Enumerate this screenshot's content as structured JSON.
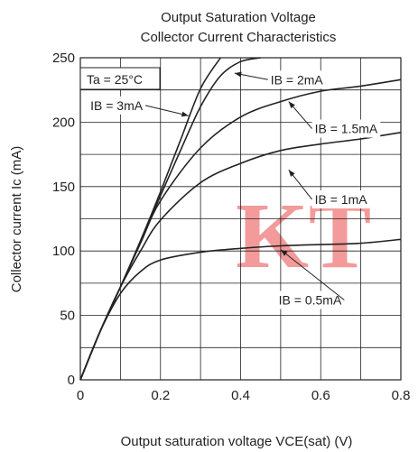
{
  "chart_data": {
    "type": "line",
    "title": [
      "Output Saturation Voltage",
      "Collector Current Characteristics"
    ],
    "xlabel": "Output saturation voltage  VCE(sat) (V)",
    "ylabel": "Collector current  Ic (mA)",
    "xlim": [
      0,
      0.8
    ],
    "ylim": [
      0,
      250
    ],
    "xticks": [
      0,
      0.2,
      0.4,
      0.6,
      0.8
    ],
    "xtick_labels": [
      "0",
      "0.2",
      "0.4",
      "0.6",
      "0.8"
    ],
    "yticks": [
      0,
      50,
      100,
      150,
      200,
      250
    ],
    "ytick_labels": [
      "0",
      "50",
      "100",
      "150",
      "200",
      "250"
    ],
    "grid": true,
    "condition": "Ta = 25°C",
    "series": [
      {
        "name": "IB = 0.5mA",
        "x": [
          0,
          0.05,
          0.1,
          0.15,
          0.2,
          0.3,
          0.4,
          0.5,
          0.6,
          0.7,
          0.8
        ],
        "y": [
          0,
          38,
          67,
          84,
          93,
          99,
          102,
          104,
          105,
          106,
          109
        ]
      },
      {
        "name": "IB = 1mA",
        "x": [
          0,
          0.05,
          0.1,
          0.15,
          0.2,
          0.3,
          0.4,
          0.5,
          0.6,
          0.7,
          0.8
        ],
        "y": [
          0,
          38,
          72,
          100,
          124,
          153,
          168,
          178,
          183,
          187,
          192
        ]
      },
      {
        "name": "IB = 1.5mA",
        "x": [
          0,
          0.05,
          0.1,
          0.15,
          0.2,
          0.3,
          0.4,
          0.5,
          0.6,
          0.7,
          0.8
        ],
        "y": [
          0,
          38,
          72,
          106,
          139,
          180,
          204,
          216,
          224,
          228,
          233
        ]
      },
      {
        "name": "IB = 2mA",
        "x": [
          0,
          0.05,
          0.1,
          0.15,
          0.2,
          0.25,
          0.3,
          0.35,
          0.4,
          0.45
        ],
        "y": [
          0,
          38,
          72,
          107,
          143,
          178,
          212,
          236,
          247,
          250
        ]
      },
      {
        "name": "IB = 3mA",
        "x": [
          0,
          0.05,
          0.1,
          0.15,
          0.2,
          0.25,
          0.3,
          0.35
        ],
        "y": [
          0,
          38,
          72,
          108,
          146,
          186,
          226,
          250
        ]
      }
    ],
    "labels": [
      {
        "text": "IB = 2mA",
        "x": 0.475,
        "y": 233,
        "ax": 0.385,
        "ay": 238
      },
      {
        "text": "IB = 3mA",
        "x": 0.025,
        "y": 213,
        "ax": 0.27,
        "ay": 205
      },
      {
        "text": "IB = 1.5mA",
        "x": 0.585,
        "y": 195,
        "ax": 0.52,
        "ay": 216
      },
      {
        "text": "IB = 1mA",
        "x": 0.585,
        "y": 140,
        "ax": 0.52,
        "ay": 163
      },
      {
        "text": "IB = 0.5mA",
        "x": 0.495,
        "y": 62,
        "ax": 0.5,
        "ay": 101
      }
    ],
    "watermark": "KT",
    "colors": {
      "line": "#222222",
      "grid": "#222222",
      "watermark": "#ef7373"
    }
  }
}
